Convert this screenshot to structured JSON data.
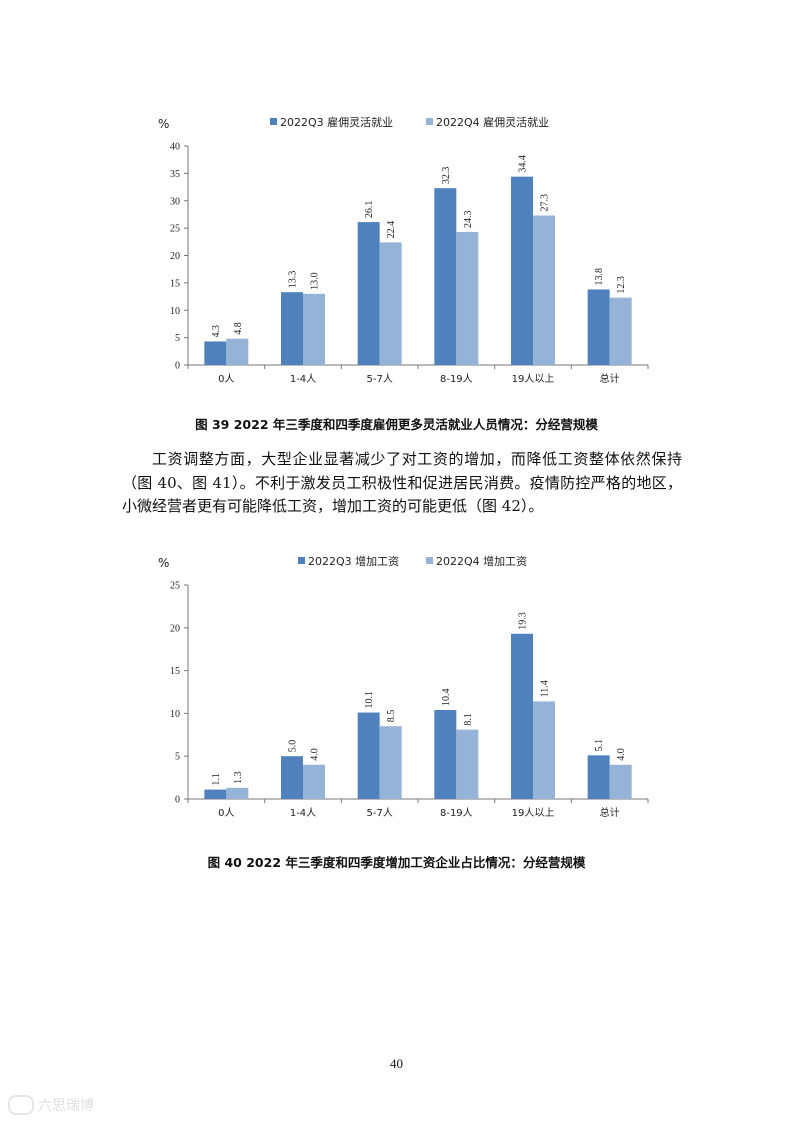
{
  "charts": [
    {
      "id": "chart1",
      "unit": "%",
      "legend": [
        "2022Q3 雇佣灵活就业",
        "2022Q4 雇佣灵活就业"
      ],
      "yticks": [
        "0",
        "5",
        "10",
        "15",
        "20",
        "25",
        "30",
        "35",
        "40"
      ]
    },
    {
      "id": "chart2",
      "unit": "%",
      "legend": [
        "2022Q3 增加工资",
        "2022Q4 增加工资"
      ],
      "yticks": [
        "0",
        "5",
        "10",
        "15",
        "20",
        "25"
      ]
    }
  ],
  "chart_data": [
    {
      "type": "bar",
      "title": "",
      "ylabel": "%",
      "categories": [
        "0人",
        "1-4人",
        "5-7人",
        "8-19人",
        "19人以上",
        "总计"
      ],
      "series": [
        {
          "name": "2022Q3 雇佣灵活就业",
          "values": [
            4.3,
            13.3,
            26.1,
            32.3,
            34.4,
            13.8
          ],
          "labels": [
            "4.3",
            "13.3",
            "26.1",
            "32.3",
            "34.4",
            "13.8"
          ],
          "color": "#4f81bd"
        },
        {
          "name": "2022Q4 雇佣灵活就业",
          "values": [
            4.8,
            13.0,
            22.4,
            24.3,
            27.3,
            12.3
          ],
          "labels": [
            "4.8",
            "13.0",
            "22.4",
            "24.3",
            "27.3",
            "12.3"
          ],
          "color": "#95b3d7"
        }
      ],
      "ylim": [
        0,
        40
      ],
      "legend_position": "top"
    },
    {
      "type": "bar",
      "title": "",
      "ylabel": "%",
      "categories": [
        "0人",
        "1-4人",
        "5-7人",
        "8-19人",
        "19人以上",
        "总计"
      ],
      "series": [
        {
          "name": "2022Q3 增加工资",
          "values": [
            1.1,
            5.0,
            10.1,
            10.4,
            19.3,
            5.1
          ],
          "labels": [
            "1.1",
            "5.0",
            "10.1",
            "10.4",
            "19.3",
            "5.1"
          ],
          "color": "#4f81bd"
        },
        {
          "name": "2022Q4 增加工资",
          "values": [
            1.3,
            4.0,
            8.5,
            8.1,
            11.4,
            4.0
          ],
          "labels": [
            "1.3",
            "4.0",
            "8.5",
            "8.1",
            "11.4",
            "4.0"
          ],
          "color": "#95b3d7"
        }
      ],
      "ylim": [
        0,
        25
      ],
      "legend_position": "top"
    }
  ],
  "captions": {
    "fig39": "图 39 2022 年三季度和四季度雇佣更多灵活就业人员情况：分经营规模",
    "fig40": "图 40  2022 年三季度和四季度增加工资企业占比情况：分经营规模"
  },
  "paragraph": "工资调整方面，大型企业显著减少了对工资的增加，而降低工资整体依然保持（图 40、图 41）。不利于激发员工积极性和促进居民消费。疫情防控严格的地区，小微经营者更有可能降低工资，增加工资的可能更低（图 42）。",
  "page_number": "40",
  "watermark": "六思瑞博"
}
